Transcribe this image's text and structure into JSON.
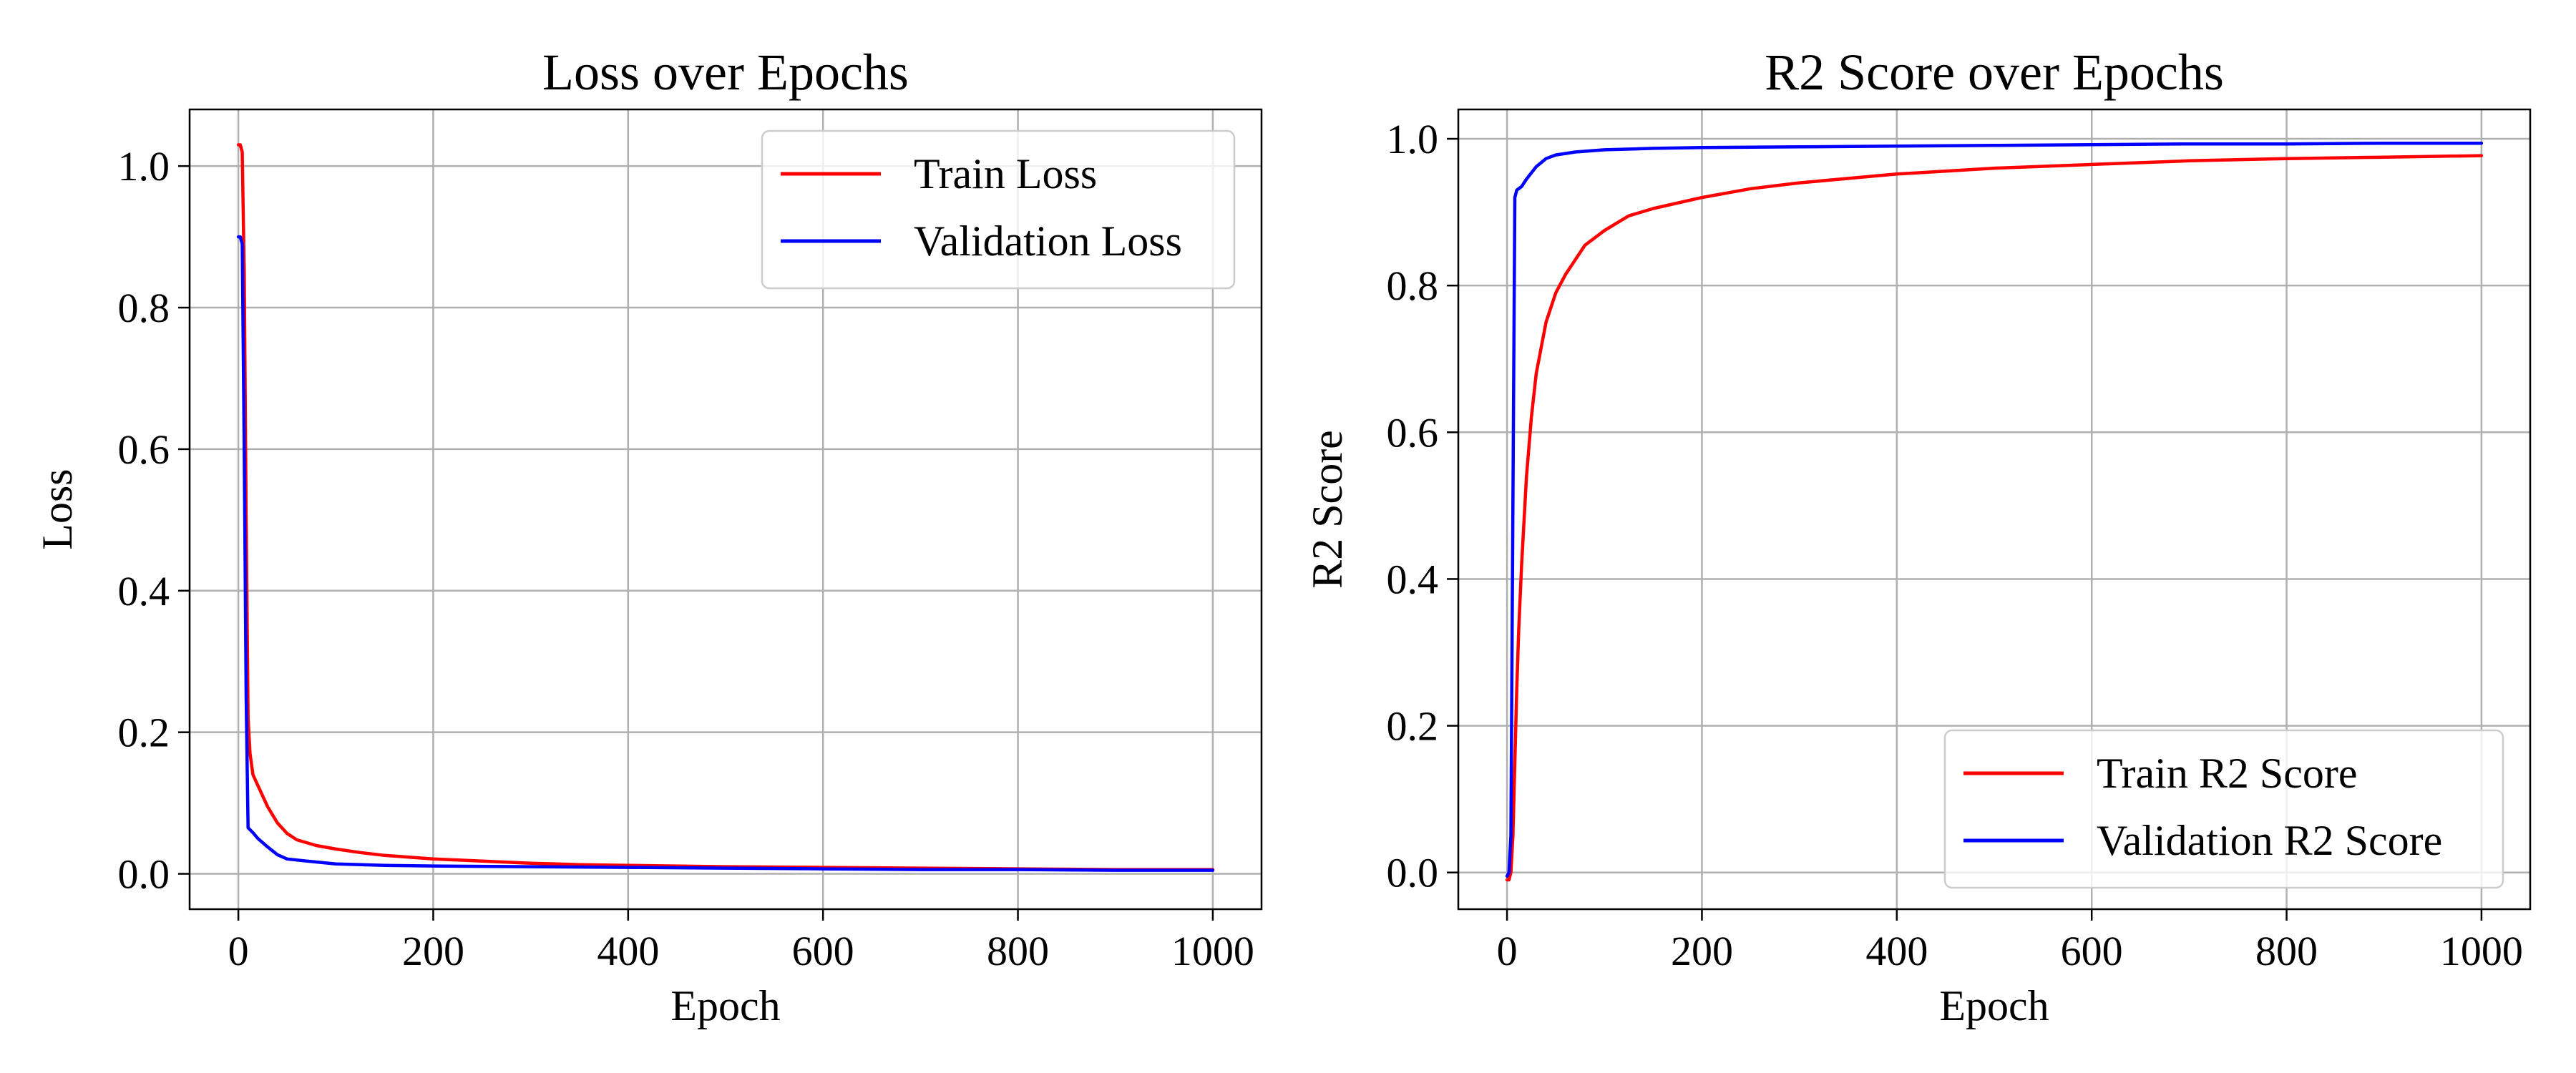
{
  "chart_data": [
    {
      "type": "line",
      "title": "Loss over Epochs",
      "xlabel": "Epoch",
      "ylabel": "Loss",
      "xlim": [
        -50,
        1050
      ],
      "ylim": [
        -0.05,
        1.08
      ],
      "xticks": [
        0,
        200,
        400,
        600,
        800,
        1000
      ],
      "yticks": [
        0.0,
        0.2,
        0.4,
        0.6,
        0.8,
        1.0
      ],
      "xtick_labels": [
        "0",
        "200",
        "400",
        "600",
        "800",
        "1000"
      ],
      "ytick_labels": [
        "0.0",
        "0.2",
        "0.4",
        "0.6",
        "0.8",
        "1.0"
      ],
      "grid": true,
      "legend_position": "top-right",
      "series": [
        {
          "name": "Train Loss",
          "color": "#ff0000",
          "x": [
            0,
            2,
            4,
            6,
            8,
            10,
            12,
            15,
            20,
            25,
            30,
            40,
            50,
            60,
            80,
            100,
            125,
            150,
            200,
            250,
            300,
            350,
            400,
            500,
            600,
            700,
            800,
            900,
            1000
          ],
          "y": [
            1.03,
            1.03,
            1.02,
            0.85,
            0.5,
            0.22,
            0.17,
            0.14,
            0.125,
            0.11,
            0.095,
            0.072,
            0.057,
            0.048,
            0.04,
            0.035,
            0.03,
            0.026,
            0.021,
            0.018,
            0.015,
            0.013,
            0.012,
            0.01,
            0.009,
            0.008,
            0.007,
            0.006,
            0.006
          ]
        },
        {
          "name": "Validation Loss",
          "color": "#0000ff",
          "x": [
            0,
            2,
            4,
            6,
            8,
            10,
            15,
            20,
            30,
            40,
            50,
            70,
            100,
            150,
            200,
            300,
            400,
            500,
            600,
            700,
            800,
            900,
            1000
          ],
          "y": [
            0.9,
            0.9,
            0.89,
            0.6,
            0.25,
            0.065,
            0.058,
            0.05,
            0.038,
            0.027,
            0.021,
            0.018,
            0.014,
            0.012,
            0.011,
            0.01,
            0.009,
            0.008,
            0.007,
            0.006,
            0.006,
            0.005,
            0.005
          ]
        }
      ]
    },
    {
      "type": "line",
      "title": "R2 Score over Epochs",
      "xlabel": "Epoch",
      "ylabel": "R2 Score",
      "xlim": [
        -50,
        1050
      ],
      "ylim": [
        -0.05,
        1.04
      ],
      "xticks": [
        0,
        200,
        400,
        600,
        800,
        1000
      ],
      "yticks": [
        0.0,
        0.2,
        0.4,
        0.6,
        0.8,
        1.0
      ],
      "xtick_labels": [
        "0",
        "200",
        "400",
        "600",
        "800",
        "1000"
      ],
      "ytick_labels": [
        "0.0",
        "0.2",
        "0.4",
        "0.6",
        "0.8",
        "1.0"
      ],
      "grid": true,
      "legend_position": "bottom-right",
      "series": [
        {
          "name": "Train R2 Score",
          "color": "#ff0000",
          "x": [
            0,
            2,
            4,
            6,
            8,
            10,
            12,
            15,
            20,
            25,
            30,
            40,
            50,
            60,
            80,
            100,
            125,
            150,
            200,
            250,
            300,
            400,
            500,
            600,
            700,
            800,
            900,
            1000
          ],
          "y": [
            -0.01,
            -0.01,
            0.0,
            0.05,
            0.15,
            0.25,
            0.33,
            0.42,
            0.54,
            0.62,
            0.68,
            0.75,
            0.79,
            0.815,
            0.855,
            0.875,
            0.895,
            0.905,
            0.92,
            0.932,
            0.94,
            0.952,
            0.96,
            0.965,
            0.97,
            0.973,
            0.975,
            0.977
          ]
        },
        {
          "name": "Validation R2 Score",
          "color": "#0000ff",
          "x": [
            0,
            2,
            4,
            6,
            8,
            10,
            15,
            20,
            30,
            40,
            50,
            70,
            100,
            150,
            200,
            300,
            400,
            500,
            600,
            700,
            800,
            900,
            1000
          ],
          "y": [
            -0.005,
            0.0,
            0.05,
            0.5,
            0.92,
            0.93,
            0.935,
            0.945,
            0.962,
            0.973,
            0.978,
            0.982,
            0.985,
            0.987,
            0.988,
            0.989,
            0.99,
            0.991,
            0.992,
            0.993,
            0.993,
            0.994,
            0.994
          ]
        }
      ]
    }
  ]
}
